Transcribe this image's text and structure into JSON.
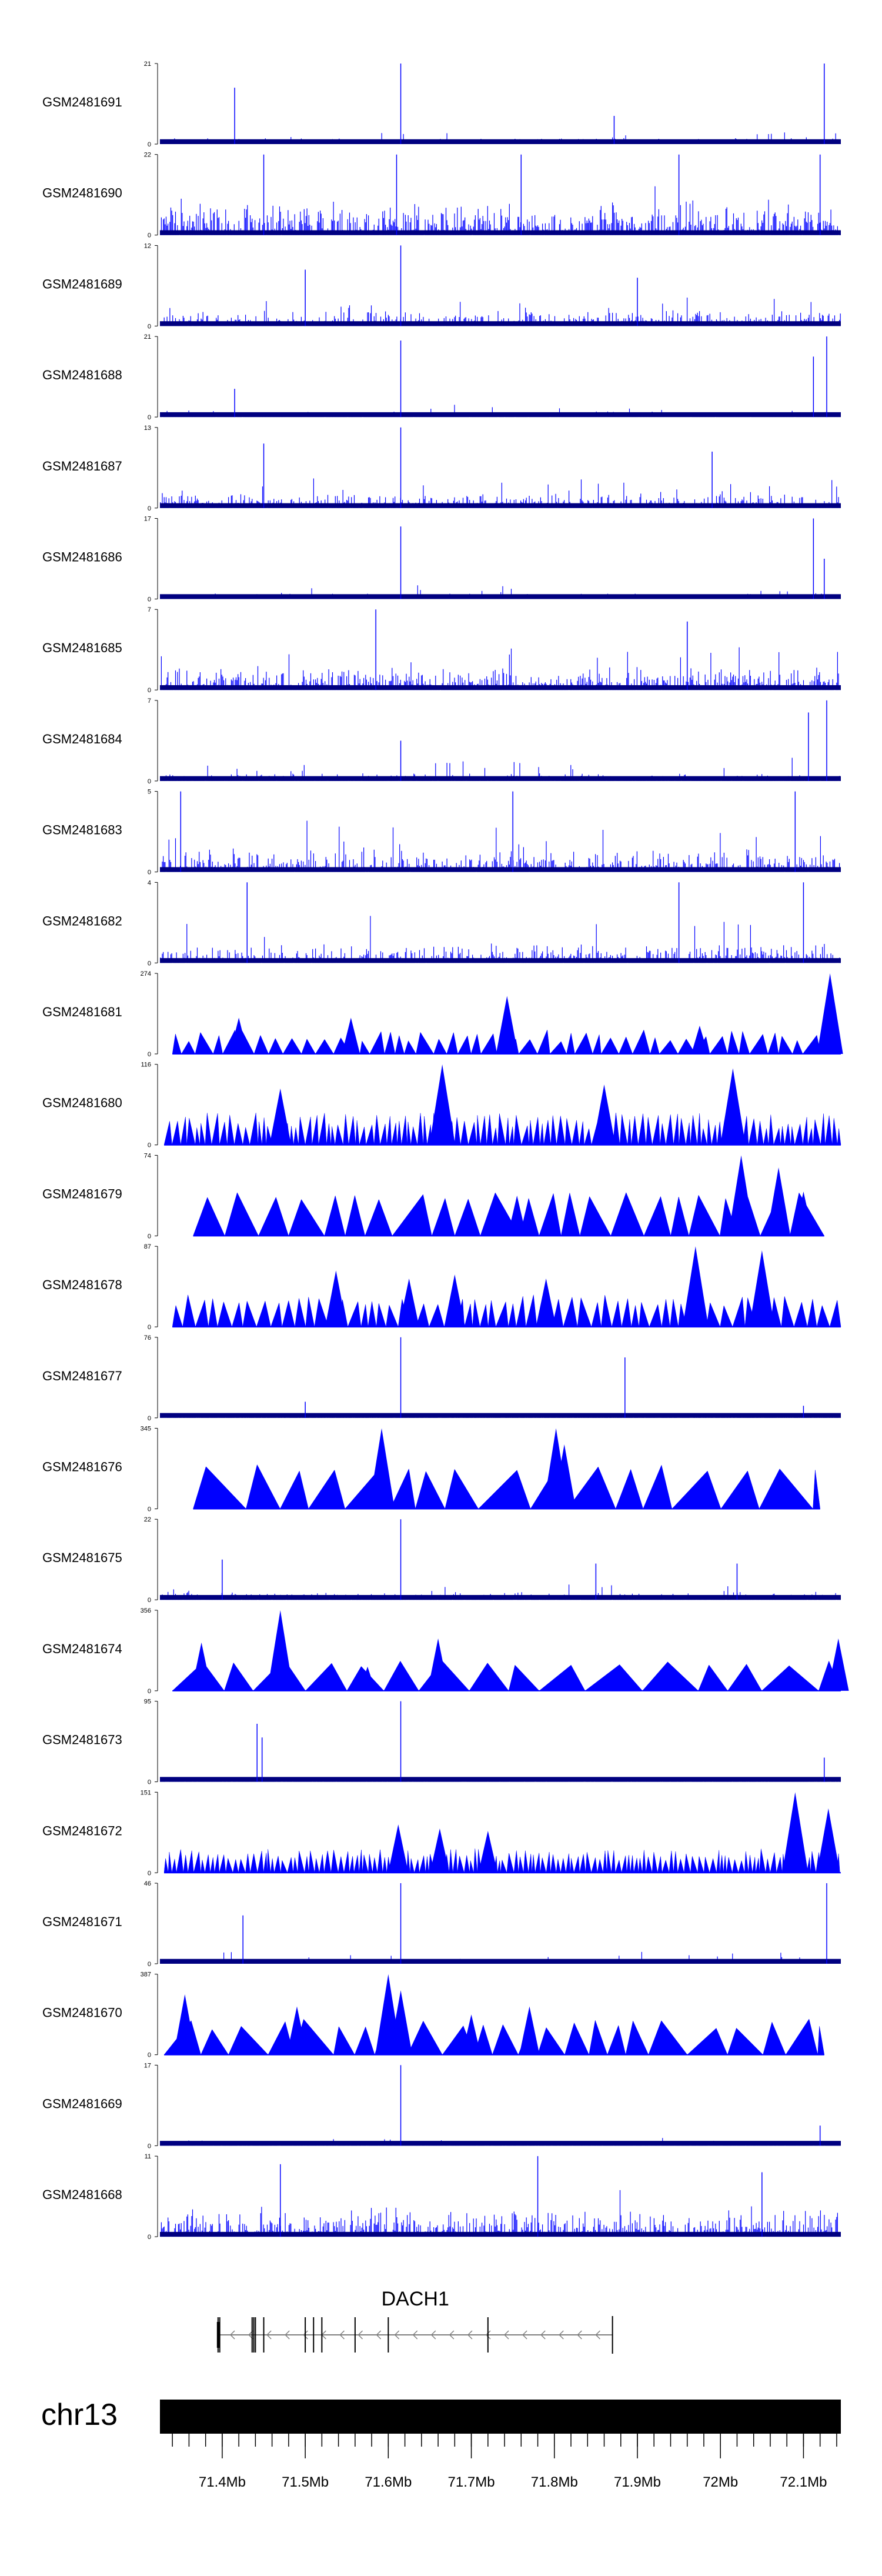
{
  "chart_data": {
    "type": "genome-browser-coverage",
    "region": {
      "chromosome": "chr13",
      "start_mb": 71.325,
      "end_mb": 72.145
    },
    "tracks": [
      {
        "name": "GSM2481691",
        "ymax": 21,
        "ymin": 0,
        "style": "bars",
        "seed": 11,
        "base": 0.08,
        "spread": 0.1,
        "peaks": [
          [
            71.415,
            0.7
          ],
          [
            71.615,
            1.0
          ],
          [
            71.872,
            0.35
          ],
          [
            72.125,
            1.0
          ]
        ]
      },
      {
        "name": "GSM2481690",
        "ymax": 22,
        "ymin": 0,
        "style": "bars",
        "seed": 12,
        "base": 0.45,
        "spread": 0.35,
        "peaks": [
          [
            71.45,
            1.0
          ],
          [
            71.61,
            1.0
          ],
          [
            71.76,
            1.0
          ],
          [
            71.95,
            1.0
          ],
          [
            72.12,
            1.0
          ]
        ]
      },
      {
        "name": "GSM2481689",
        "ymax": 12,
        "ymin": 0,
        "style": "bars",
        "seed": 13,
        "base": 0.2,
        "spread": 0.3,
        "peaks": [
          [
            71.615,
            1.0
          ],
          [
            71.5,
            0.7
          ],
          [
            71.9,
            0.6
          ]
        ]
      },
      {
        "name": "GSM2481688",
        "ymax": 21,
        "ymin": 0,
        "style": "bars",
        "seed": 14,
        "base": 0.07,
        "spread": 0.12,
        "peaks": [
          [
            71.415,
            0.35
          ],
          [
            71.615,
            0.95
          ],
          [
            72.112,
            0.75
          ],
          [
            72.128,
            1.0
          ]
        ]
      },
      {
        "name": "GSM2481687",
        "ymax": 13,
        "ymin": 0,
        "style": "bars",
        "seed": 15,
        "base": 0.2,
        "spread": 0.35,
        "peaks": [
          [
            71.615,
            1.0
          ],
          [
            71.45,
            0.8
          ],
          [
            71.99,
            0.7
          ]
        ]
      },
      {
        "name": "GSM2481686",
        "ymax": 17,
        "ymin": 0,
        "style": "bars",
        "seed": 16,
        "base": 0.07,
        "spread": 0.12,
        "peaks": [
          [
            71.615,
            0.9
          ],
          [
            72.112,
            1.0
          ],
          [
            72.125,
            0.5
          ]
        ]
      },
      {
        "name": "GSM2481685",
        "ymax": 7,
        "ymin": 0,
        "style": "bars",
        "seed": 17,
        "base": 0.3,
        "spread": 0.5,
        "peaks": [
          [
            71.585,
            1.0
          ],
          [
            71.96,
            0.85
          ]
        ]
      },
      {
        "name": "GSM2481684",
        "ymax": 7,
        "ymin": 0,
        "style": "bars",
        "seed": 18,
        "base": 0.1,
        "spread": 0.2,
        "peaks": [
          [
            72.106,
            0.85
          ],
          [
            72.128,
            1.0
          ],
          [
            71.615,
            0.5
          ]
        ]
      },
      {
        "name": "GSM2481683",
        "ymax": 5,
        "ymin": 0,
        "style": "bars",
        "seed": 19,
        "base": 0.3,
        "spread": 0.55,
        "peaks": [
          [
            71.35,
            1.0
          ],
          [
            71.75,
            1.0
          ],
          [
            72.09,
            1.0
          ]
        ]
      },
      {
        "name": "GSM2481682",
        "ymax": 4,
        "ymin": 0,
        "style": "bars",
        "seed": 20,
        "base": 0.25,
        "spread": 0.5,
        "peaks": [
          [
            71.43,
            1.0
          ],
          [
            71.95,
            1.0
          ],
          [
            72.1,
            1.0
          ]
        ]
      },
      {
        "name": "GSM2481681",
        "ymax": 274,
        "ymin": 0,
        "style": "tri",
        "seed": 21,
        "x0": 71.34,
        "x1": 72.145,
        "dens": 50,
        "hmin": 0.15,
        "hmax": 0.3,
        "peaks": [
          [
            71.42,
            0.45
          ],
          [
            71.555,
            0.45
          ],
          [
            71.743,
            0.72
          ],
          [
            71.975,
            0.35
          ],
          [
            72.132,
            1.0
          ]
        ]
      },
      {
        "name": "GSM2481680",
        "ymax": 116,
        "ymin": 0,
        "style": "tri",
        "seed": 22,
        "x0": 71.33,
        "x1": 72.145,
        "dens": 110,
        "hmin": 0.2,
        "hmax": 0.4,
        "peaks": [
          [
            71.47,
            0.7
          ],
          [
            71.665,
            1.0
          ],
          [
            71.86,
            0.75
          ],
          [
            72.015,
            0.95
          ]
        ]
      },
      {
        "name": "GSM2481679",
        "ymax": 74,
        "ymin": 0,
        "style": "tri",
        "seed": 23,
        "x0": 71.365,
        "x1": 72.125,
        "dens": 22,
        "hmin": 0.45,
        "hmax": 0.55,
        "peaks": [
          [
            71.755,
            0.5
          ],
          [
            72.025,
            1.0
          ],
          [
            72.07,
            0.85
          ],
          [
            72.1,
            0.55
          ]
        ]
      },
      {
        "name": "GSM2481678",
        "ymax": 87,
        "ymin": 0,
        "style": "tri",
        "seed": 24,
        "x0": 71.34,
        "x1": 72.145,
        "dens": 60,
        "hmin": 0.25,
        "hmax": 0.4,
        "peaks": [
          [
            71.537,
            0.7
          ],
          [
            71.625,
            0.6
          ],
          [
            71.68,
            0.65
          ],
          [
            71.79,
            0.6
          ],
          [
            71.97,
            1.0
          ],
          [
            72.05,
            0.95
          ]
        ]
      },
      {
        "name": "GSM2481677",
        "ymax": 76,
        "ymin": 0,
        "style": "bars",
        "seed": 25,
        "base": 0.02,
        "spread": 0.05,
        "peaks": [
          [
            71.615,
            1.0
          ],
          [
            71.885,
            0.75
          ],
          [
            71.5,
            0.2
          ],
          [
            72.1,
            0.15
          ]
        ]
      },
      {
        "name": "GSM2481676",
        "ymax": 345,
        "ymin": 0,
        "style": "tri",
        "seed": 26,
        "x0": 71.365,
        "x1": 72.12,
        "dens": 16,
        "hmin": 0.45,
        "hmax": 0.55,
        "peaks": [
          [
            71.592,
            1.0
          ],
          [
            71.802,
            1.0
          ],
          [
            71.812,
            0.8
          ]
        ]
      },
      {
        "name": "GSM2481675",
        "ymax": 22,
        "ymin": 0,
        "style": "bars",
        "seed": 27,
        "base": 0.1,
        "spread": 0.18,
        "peaks": [
          [
            71.615,
            1.0
          ],
          [
            71.4,
            0.5
          ],
          [
            71.85,
            0.45
          ],
          [
            72.02,
            0.45
          ]
        ]
      },
      {
        "name": "GSM2481674",
        "ymax": 356,
        "ymin": 0,
        "style": "tri",
        "seed": 27,
        "x0": 71.34,
        "x1": 72.145,
        "dens": 15,
        "hmin": 0.3,
        "hmax": 0.4,
        "peaks": [
          [
            71.375,
            0.6
          ],
          [
            71.47,
            1.0
          ],
          [
            71.575,
            0.3
          ],
          [
            71.66,
            0.65
          ],
          [
            72.142,
            0.65
          ]
        ]
      },
      {
        "name": "GSM2481673",
        "ymax": 95,
        "ymin": 0,
        "style": "bars",
        "seed": 28,
        "base": 0.02,
        "spread": 0.05,
        "peaks": [
          [
            71.442,
            0.72
          ],
          [
            71.448,
            0.55
          ],
          [
            71.615,
            1.0
          ],
          [
            72.125,
            0.3
          ]
        ]
      },
      {
        "name": "GSM2481672",
        "ymax": 151,
        "ymin": 0,
        "style": "tri",
        "seed": 29,
        "x0": 71.33,
        "x1": 72.145,
        "dens": 130,
        "hmin": 0.15,
        "hmax": 0.3,
        "peaks": [
          [
            71.612,
            0.6
          ],
          [
            71.662,
            0.55
          ],
          [
            71.72,
            0.52
          ],
          [
            72.09,
            1.0
          ],
          [
            72.13,
            0.8
          ]
        ]
      },
      {
        "name": "GSM2481671",
        "ymax": 46,
        "ymin": 0,
        "style": "bars",
        "seed": 30,
        "base": 0.05,
        "spread": 0.15,
        "peaks": [
          [
            71.615,
            1.0
          ],
          [
            71.425,
            0.6
          ],
          [
            72.128,
            1.0
          ]
        ]
      },
      {
        "name": "GSM2481670",
        "ymax": 387,
        "ymin": 0,
        "style": "tri",
        "seed": 31,
        "x0": 71.33,
        "x1": 72.125,
        "dens": 22,
        "hmin": 0.3,
        "hmax": 0.45,
        "peaks": [
          [
            71.355,
            0.75
          ],
          [
            71.6,
            1.0
          ],
          [
            71.615,
            0.8
          ],
          [
            71.49,
            0.6
          ],
          [
            71.7,
            0.5
          ],
          [
            71.77,
            0.6
          ]
        ]
      },
      {
        "name": "GSM2481669",
        "ymax": 17,
        "ymin": 0,
        "style": "bars",
        "seed": 32,
        "base": 0.03,
        "spread": 0.07,
        "peaks": [
          [
            71.615,
            1.0
          ],
          [
            72.12,
            0.25
          ]
        ]
      },
      {
        "name": "GSM2481668",
        "ymax": 11,
        "ymin": 0,
        "style": "bars",
        "seed": 33,
        "base": 0.35,
        "spread": 0.4,
        "peaks": [
          [
            71.78,
            1.0
          ],
          [
            71.47,
            0.9
          ],
          [
            72.05,
            0.8
          ]
        ]
      }
    ],
    "gene": {
      "name": "DACH1",
      "start_mb": 71.395,
      "end_mb": 71.87,
      "strand": "-",
      "exons_mb": [
        71.395,
        71.397,
        71.436,
        71.438,
        71.44,
        71.45,
        71.5,
        71.51,
        71.52,
        71.56,
        71.6,
        71.72
      ]
    },
    "axis": {
      "chromosome_label": "chr13",
      "tick_labels": [
        "71.4Mb",
        "71.5Mb",
        "71.6Mb",
        "71.7Mb",
        "71.8Mb",
        "71.9Mb",
        "72Mb",
        "72.1Mb"
      ],
      "tick_values_mb": [
        71.4,
        71.5,
        71.6,
        71.7,
        71.8,
        71.9,
        72.0,
        72.1
      ],
      "minor_tick_step_mb": 0.02
    },
    "colors": {
      "signal": "#0000ff",
      "baseline": "#000080",
      "axis": "#000000",
      "gene": "#808080"
    }
  }
}
